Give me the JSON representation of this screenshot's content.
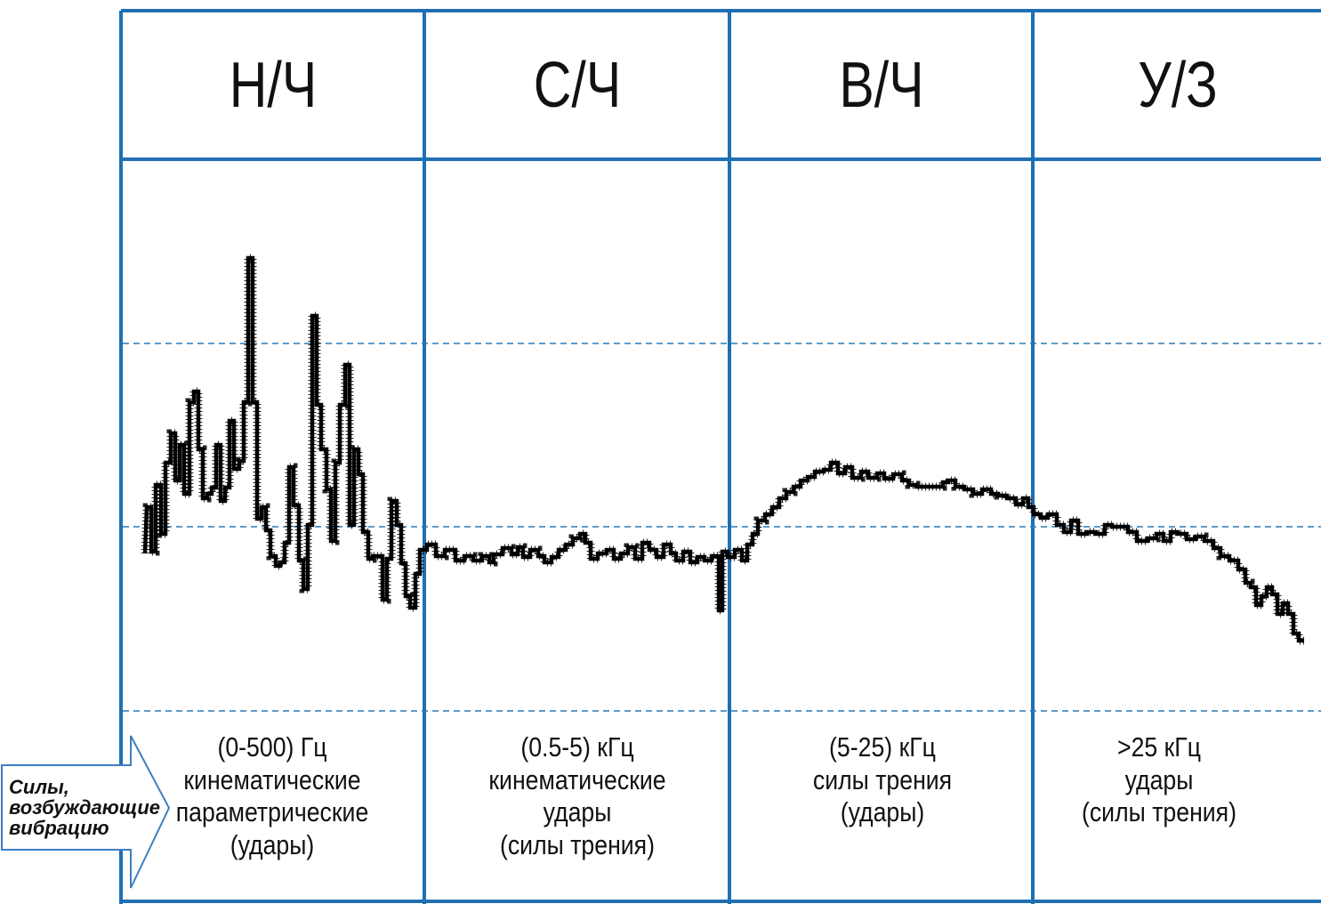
{
  "bands": [
    {
      "title": "Н/Ч",
      "lines": [
        "(0-500) Гц",
        "кинематические",
        "параметрические",
        "(удары)"
      ]
    },
    {
      "title": "С/Ч",
      "lines": [
        "(0.5-5) кГц",
        "кинематические",
        "удары",
        "(силы трения)"
      ]
    },
    {
      "title": "В/Ч",
      "lines": [
        "(5-25) кГц",
        "силы трения",
        "(удары)"
      ]
    },
    {
      "title": "У/З",
      "lines": [
        ">25 кГц",
        "удары",
        "(силы трения)"
      ]
    }
  ],
  "arrow": {
    "lines": [
      "Силы,",
      "возбуждающие",
      "вибрацию"
    ]
  },
  "colors": {
    "frame": "#1f6fb2",
    "dashed": "#2a78b5",
    "trace": "#000000",
    "text": "#111111"
  },
  "spectrum": {
    "shape": "jagged low-frequency peaks, flat mid band, raised plateau in high band, decline in ultrasonic band",
    "points": [
      [
        163,
        622
      ],
      [
        165,
        570
      ],
      [
        170,
        570
      ],
      [
        170,
        620
      ],
      [
        175,
        620
      ],
      [
        175,
        545
      ],
      [
        181,
        545
      ],
      [
        181,
        600
      ],
      [
        186,
        600
      ],
      [
        186,
        520
      ],
      [
        192,
        520
      ],
      [
        192,
        487
      ],
      [
        197,
        487
      ],
      [
        197,
        540
      ],
      [
        202,
        540
      ],
      [
        202,
        500
      ],
      [
        207,
        500
      ],
      [
        207,
        555
      ],
      [
        213,
        555
      ],
      [
        213,
        452
      ],
      [
        218,
        452
      ],
      [
        218,
        440
      ],
      [
        223,
        440
      ],
      [
        223,
        505
      ],
      [
        228,
        505
      ],
      [
        228,
        560
      ],
      [
        233,
        560
      ],
      [
        233,
        555
      ],
      [
        238,
        555
      ],
      [
        238,
        548
      ],
      [
        243,
        548
      ],
      [
        243,
        500
      ],
      [
        248,
        500
      ],
      [
        248,
        563
      ],
      [
        253,
        563
      ],
      [
        253,
        548
      ],
      [
        258,
        548
      ],
      [
        258,
        473
      ],
      [
        263,
        473
      ],
      [
        263,
        527
      ],
      [
        269,
        527
      ],
      [
        269,
        518
      ],
      [
        274,
        518
      ],
      [
        274,
        452
      ],
      [
        279,
        452
      ],
      [
        279,
        290
      ],
      [
        284,
        290
      ],
      [
        284,
        452
      ],
      [
        289,
        452
      ],
      [
        289,
        583
      ],
      [
        294,
        583
      ],
      [
        294,
        570
      ],
      [
        299,
        570
      ],
      [
        299,
        596
      ],
      [
        304,
        596
      ],
      [
        304,
        625
      ],
      [
        310,
        625
      ],
      [
        310,
        636
      ],
      [
        315,
        636
      ],
      [
        315,
        632
      ],
      [
        320,
        632
      ],
      [
        320,
        610
      ],
      [
        325,
        610
      ],
      [
        325,
        525
      ],
      [
        330,
        525
      ],
      [
        330,
        568
      ],
      [
        336,
        568
      ],
      [
        336,
        630
      ],
      [
        341,
        630
      ],
      [
        341,
        662
      ],
      [
        346,
        662
      ],
      [
        346,
        590
      ],
      [
        351,
        590
      ],
      [
        351,
        355
      ],
      [
        356,
        355
      ],
      [
        356,
        455
      ],
      [
        361,
        455
      ],
      [
        361,
        505
      ],
      [
        367,
        505
      ],
      [
        367,
        550
      ],
      [
        372,
        550
      ],
      [
        372,
        608
      ],
      [
        377,
        608
      ],
      [
        377,
        520
      ],
      [
        382,
        520
      ],
      [
        382,
        455
      ],
      [
        388,
        455
      ],
      [
        388,
        410
      ],
      [
        393,
        410
      ],
      [
        393,
        590
      ],
      [
        398,
        590
      ],
      [
        398,
        505
      ],
      [
        403,
        505
      ],
      [
        403,
        533
      ],
      [
        408,
        533
      ],
      [
        408,
        598
      ],
      [
        414,
        598
      ],
      [
        414,
        628
      ],
      [
        419,
        628
      ],
      [
        419,
        625
      ],
      [
        430,
        625
      ],
      [
        430,
        674
      ],
      [
        435,
        674
      ],
      [
        435,
        628
      ],
      [
        440,
        628
      ],
      [
        440,
        563
      ],
      [
        446,
        563
      ],
      [
        446,
        590
      ],
      [
        451,
        590
      ],
      [
        451,
        633
      ],
      [
        456,
        633
      ],
      [
        456,
        670
      ],
      [
        461,
        670
      ],
      [
        461,
        683
      ],
      [
        467,
        683
      ],
      [
        467,
        645
      ],
      [
        472,
        645
      ],
      [
        472,
        618
      ],
      [
        480,
        618
      ],
      [
        480,
        612
      ],
      [
        490,
        612
      ],
      [
        490,
        625
      ],
      [
        500,
        625
      ],
      [
        500,
        618
      ],
      [
        512,
        618
      ],
      [
        512,
        630
      ],
      [
        522,
        630
      ],
      [
        522,
        625
      ],
      [
        532,
        625
      ],
      [
        532,
        630
      ],
      [
        542,
        630
      ],
      [
        542,
        625
      ],
      [
        550,
        625
      ],
      [
        550,
        632
      ],
      [
        555,
        632
      ],
      [
        555,
        623
      ],
      [
        565,
        623
      ],
      [
        565,
        616
      ],
      [
        575,
        616
      ],
      [
        575,
        623
      ],
      [
        582,
        623
      ],
      [
        582,
        615
      ],
      [
        588,
        615
      ],
      [
        588,
        626
      ],
      [
        596,
        626
      ],
      [
        596,
        618
      ],
      [
        605,
        618
      ],
      [
        605,
        625
      ],
      [
        612,
        625
      ],
      [
        612,
        632
      ],
      [
        620,
        632
      ],
      [
        620,
        626
      ],
      [
        628,
        626
      ],
      [
        628,
        618
      ],
      [
        636,
        618
      ],
      [
        636,
        612
      ],
      [
        644,
        612
      ],
      [
        644,
        605
      ],
      [
        652,
        605
      ],
      [
        652,
        600
      ],
      [
        658,
        600
      ],
      [
        658,
        610
      ],
      [
        664,
        610
      ],
      [
        664,
        628
      ],
      [
        672,
        628
      ],
      [
        672,
        622
      ],
      [
        682,
        622
      ],
      [
        682,
        618
      ],
      [
        690,
        618
      ],
      [
        690,
        628
      ],
      [
        698,
        628
      ],
      [
        698,
        622
      ],
      [
        706,
        622
      ],
      [
        706,
        615
      ],
      [
        714,
        615
      ],
      [
        714,
        628
      ],
      [
        722,
        628
      ],
      [
        722,
        610
      ],
      [
        730,
        610
      ],
      [
        730,
        618
      ],
      [
        738,
        618
      ],
      [
        738,
        626
      ],
      [
        746,
        626
      ],
      [
        746,
        612
      ],
      [
        754,
        612
      ],
      [
        754,
        622
      ],
      [
        760,
        622
      ],
      [
        760,
        630
      ],
      [
        768,
        630
      ],
      [
        768,
        620
      ],
      [
        776,
        620
      ],
      [
        776,
        632
      ],
      [
        784,
        632
      ],
      [
        784,
        626
      ],
      [
        792,
        626
      ],
      [
        792,
        630
      ],
      [
        800,
        630
      ],
      [
        800,
        625
      ],
      [
        808,
        625
      ],
      [
        808,
        686
      ],
      [
        812,
        686
      ],
      [
        812,
        620
      ],
      [
        818,
        620
      ],
      [
        818,
        626
      ],
      [
        826,
        626
      ],
      [
        826,
        618
      ],
      [
        834,
        618
      ],
      [
        834,
        630
      ],
      [
        840,
        630
      ],
      [
        840,
        612
      ],
      [
        846,
        612
      ],
      [
        846,
        600
      ],
      [
        852,
        600
      ],
      [
        852,
        585
      ],
      [
        860,
        585
      ],
      [
        860,
        578
      ],
      [
        868,
        578
      ],
      [
        868,
        570
      ],
      [
        876,
        570
      ],
      [
        876,
        560
      ],
      [
        884,
        560
      ],
      [
        884,
        553
      ],
      [
        892,
        553
      ],
      [
        892,
        547
      ],
      [
        900,
        547
      ],
      [
        900,
        540
      ],
      [
        908,
        540
      ],
      [
        908,
        536
      ],
      [
        916,
        536
      ],
      [
        916,
        530
      ],
      [
        926,
        530
      ],
      [
        926,
        528
      ],
      [
        934,
        528
      ],
      [
        934,
        520
      ],
      [
        942,
        520
      ],
      [
        942,
        532
      ],
      [
        950,
        532
      ],
      [
        950,
        525
      ],
      [
        958,
        525
      ],
      [
        958,
        537
      ],
      [
        968,
        537
      ],
      [
        968,
        530
      ],
      [
        976,
        530
      ],
      [
        976,
        537
      ],
      [
        986,
        537
      ],
      [
        986,
        532
      ],
      [
        994,
        532
      ],
      [
        994,
        538
      ],
      [
        1004,
        538
      ],
      [
        1004,
        533
      ],
      [
        1014,
        533
      ],
      [
        1014,
        540
      ],
      [
        1022,
        540
      ],
      [
        1022,
        545
      ],
      [
        1030,
        545
      ],
      [
        1030,
        547
      ],
      [
        1060,
        547
      ],
      [
        1060,
        542
      ],
      [
        1066,
        542
      ],
      [
        1066,
        540
      ],
      [
        1074,
        540
      ],
      [
        1074,
        547
      ],
      [
        1084,
        547
      ],
      [
        1084,
        550
      ],
      [
        1094,
        550
      ],
      [
        1094,
        555
      ],
      [
        1104,
        555
      ],
      [
        1104,
        550
      ],
      [
        1114,
        550
      ],
      [
        1114,
        555
      ],
      [
        1122,
        555
      ],
      [
        1122,
        557
      ],
      [
        1132,
        557
      ],
      [
        1132,
        560
      ],
      [
        1142,
        560
      ],
      [
        1142,
        567
      ],
      [
        1150,
        567
      ],
      [
        1150,
        560
      ],
      [
        1156,
        560
      ],
      [
        1156,
        570
      ],
      [
        1162,
        570
      ],
      [
        1162,
        578
      ],
      [
        1170,
        578
      ],
      [
        1170,
        582
      ],
      [
        1178,
        582
      ],
      [
        1178,
        578
      ],
      [
        1188,
        578
      ],
      [
        1188,
        590
      ],
      [
        1196,
        590
      ],
      [
        1196,
        598
      ],
      [
        1204,
        598
      ],
      [
        1204,
        585
      ],
      [
        1212,
        585
      ],
      [
        1212,
        600
      ],
      [
        1222,
        600
      ],
      [
        1222,
        598
      ],
      [
        1232,
        598
      ],
      [
        1232,
        600
      ],
      [
        1242,
        600
      ],
      [
        1242,
        590
      ],
      [
        1250,
        590
      ],
      [
        1250,
        592
      ],
      [
        1268,
        592
      ],
      [
        1268,
        598
      ],
      [
        1278,
        598
      ],
      [
        1278,
        608
      ],
      [
        1290,
        608
      ],
      [
        1290,
        605
      ],
      [
        1300,
        605
      ],
      [
        1300,
        600
      ],
      [
        1308,
        600
      ],
      [
        1308,
        608
      ],
      [
        1316,
        608
      ],
      [
        1316,
        598
      ],
      [
        1324,
        598
      ],
      [
        1324,
        600
      ],
      [
        1334,
        600
      ],
      [
        1334,
        606
      ],
      [
        1344,
        606
      ],
      [
        1344,
        603
      ],
      [
        1354,
        603
      ],
      [
        1354,
        608
      ],
      [
        1364,
        608
      ],
      [
        1364,
        616
      ],
      [
        1372,
        616
      ],
      [
        1372,
        625
      ],
      [
        1382,
        625
      ],
      [
        1382,
        630
      ],
      [
        1392,
        630
      ],
      [
        1392,
        640
      ],
      [
        1400,
        640
      ],
      [
        1400,
        655
      ],
      [
        1406,
        655
      ],
      [
        1406,
        660
      ],
      [
        1412,
        660
      ],
      [
        1412,
        680
      ],
      [
        1418,
        680
      ],
      [
        1418,
        670
      ],
      [
        1424,
        670
      ],
      [
        1424,
        660
      ],
      [
        1430,
        660
      ],
      [
        1430,
        668
      ],
      [
        1436,
        668
      ],
      [
        1436,
        690
      ],
      [
        1442,
        690
      ],
      [
        1442,
        678
      ],
      [
        1448,
        678
      ],
      [
        1448,
        690
      ],
      [
        1454,
        690
      ],
      [
        1454,
        712
      ],
      [
        1460,
        712
      ],
      [
        1460,
        720
      ],
      [
        1466,
        720
      ]
    ]
  }
}
